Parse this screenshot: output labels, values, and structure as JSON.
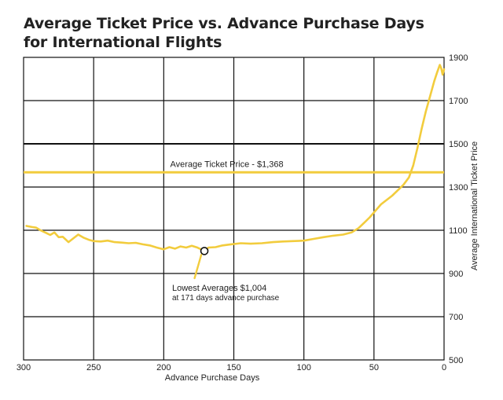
{
  "colors": {
    "series": "#f2cc3d",
    "grid": "#111111",
    "text": "#222222"
  },
  "chart_data": {
    "type": "line",
    "title": "Average Ticket Price vs. Advance Purchase Days for International Flights",
    "title_lines": [
      "Average Ticket Price vs. Advance Purchase Days",
      "for International Flights"
    ],
    "xlabel": "Advance Purchase Days",
    "ylabel": "Average International Ticket Price",
    "xlim": [
      300,
      0
    ],
    "ylim": [
      500,
      1900
    ],
    "x_ticks": [
      300,
      250,
      200,
      150,
      100,
      50,
      0
    ],
    "y_ticks": [
      500,
      700,
      900,
      1100,
      1300,
      1500,
      1700,
      1900
    ],
    "grid": true,
    "series": [
      {
        "values_xy": [
          [
            298,
            1120
          ],
          [
            294,
            1115
          ],
          [
            291,
            1112
          ],
          [
            288,
            1100
          ],
          [
            284,
            1088
          ],
          [
            281,
            1078
          ],
          [
            278,
            1090
          ],
          [
            275,
            1068
          ],
          [
            272,
            1070
          ],
          [
            268,
            1045
          ],
          [
            265,
            1060
          ],
          [
            261,
            1080
          ],
          [
            257,
            1065
          ],
          [
            253,
            1055
          ],
          [
            250,
            1050
          ],
          [
            245,
            1048
          ],
          [
            240,
            1052
          ],
          [
            235,
            1045
          ],
          [
            230,
            1043
          ],
          [
            225,
            1040
          ],
          [
            220,
            1042
          ],
          [
            215,
            1035
          ],
          [
            210,
            1030
          ],
          [
            205,
            1020
          ],
          [
            200,
            1012
          ],
          [
            196,
            1022
          ],
          [
            192,
            1015
          ],
          [
            188,
            1025
          ],
          [
            184,
            1020
          ],
          [
            180,
            1028
          ],
          [
            176,
            1020
          ],
          [
            171,
            1004
          ],
          [
            168,
            1020
          ],
          [
            163,
            1022
          ],
          [
            158,
            1030
          ],
          [
            152,
            1035
          ],
          [
            145,
            1040
          ],
          [
            138,
            1038
          ],
          [
            130,
            1040
          ],
          [
            122,
            1045
          ],
          [
            115,
            1048
          ],
          [
            108,
            1050
          ],
          [
            100,
            1052
          ],
          [
            93,
            1060
          ],
          [
            86,
            1068
          ],
          [
            79,
            1075
          ],
          [
            72,
            1080
          ],
          [
            66,
            1090
          ],
          [
            61,
            1110
          ],
          [
            57,
            1135
          ],
          [
            53,
            1160
          ],
          [
            49,
            1190
          ],
          [
            45,
            1220
          ],
          [
            41,
            1240
          ],
          [
            37,
            1260
          ],
          [
            33,
            1285
          ],
          [
            29,
            1310
          ],
          [
            25,
            1345
          ],
          [
            22,
            1400
          ],
          [
            19,
            1480
          ],
          [
            16,
            1570
          ],
          [
            13,
            1650
          ],
          [
            10,
            1720
          ],
          [
            7,
            1790
          ],
          [
            5,
            1830
          ],
          [
            3,
            1865
          ],
          [
            2,
            1850
          ],
          [
            1,
            1820
          ],
          [
            0,
            1845
          ]
        ]
      }
    ],
    "reference_line": {
      "y": 1368,
      "label": "Average Ticket Price - $1,368"
    },
    "annotation": {
      "x": 171,
      "y": 1004,
      "line1": "Lowest Averages $1,004",
      "line2": "at 171 days advance purchase"
    }
  }
}
